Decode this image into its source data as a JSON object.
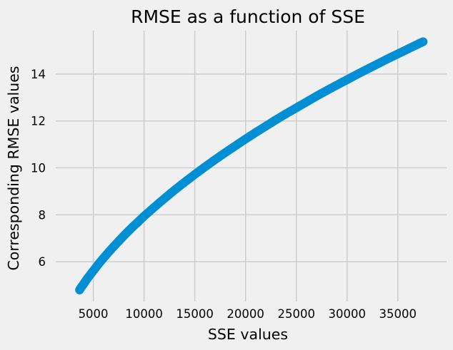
{
  "chart_data": {
    "type": "scatter",
    "title": "RMSE as a function of SSE",
    "xlabel": "SSE values",
    "ylabel": "Corresponding RMSE values",
    "xlim": [
      1300,
      39800
    ],
    "ylim": [
      4.3,
      15.85
    ],
    "x_ticks": [
      5000,
      10000,
      15000,
      20000,
      25000,
      30000,
      35000
    ],
    "y_ticks": [
      6,
      8,
      10,
      12,
      14
    ],
    "x_tick_labels": [
      "5000",
      "10000",
      "15000",
      "20000",
      "25000",
      "30000",
      "35000"
    ],
    "y_tick_labels": [
      "6",
      "8",
      "10",
      "12",
      "14"
    ],
    "grid": true,
    "legend": "none",
    "series": [
      {
        "color": "#008fd5",
        "x": [
          3640,
          3800,
          4000,
          4250,
          4500,
          5000,
          5500,
          6000,
          6500,
          7000,
          7500,
          8000,
          8500,
          9000,
          9500,
          10000,
          11000,
          12000,
          13000,
          14000,
          15000,
          16000,
          17000,
          18000,
          19000,
          20000,
          21000,
          22000,
          23000,
          24000,
          25000,
          26000,
          27000,
          28000,
          29000,
          30000,
          31000,
          32000,
          33000,
          34000,
          35000,
          36000,
          37000,
          37500
        ],
        "y": [
          4.79,
          4.9,
          5.02,
          5.18,
          5.33,
          5.61,
          5.89,
          6.15,
          6.4,
          6.64,
          6.87,
          7.1,
          7.32,
          7.53,
          7.73,
          7.94,
          8.32,
          8.69,
          9.05,
          9.39,
          9.72,
          10.04,
          10.35,
          10.65,
          10.94,
          11.23,
          11.51,
          11.78,
          12.05,
          12.31,
          12.56,
          12.81,
          13.06,
          13.3,
          13.53,
          13.76,
          13.99,
          14.21,
          14.43,
          14.65,
          14.86,
          15.07,
          15.28,
          15.38
        ]
      }
    ]
  }
}
